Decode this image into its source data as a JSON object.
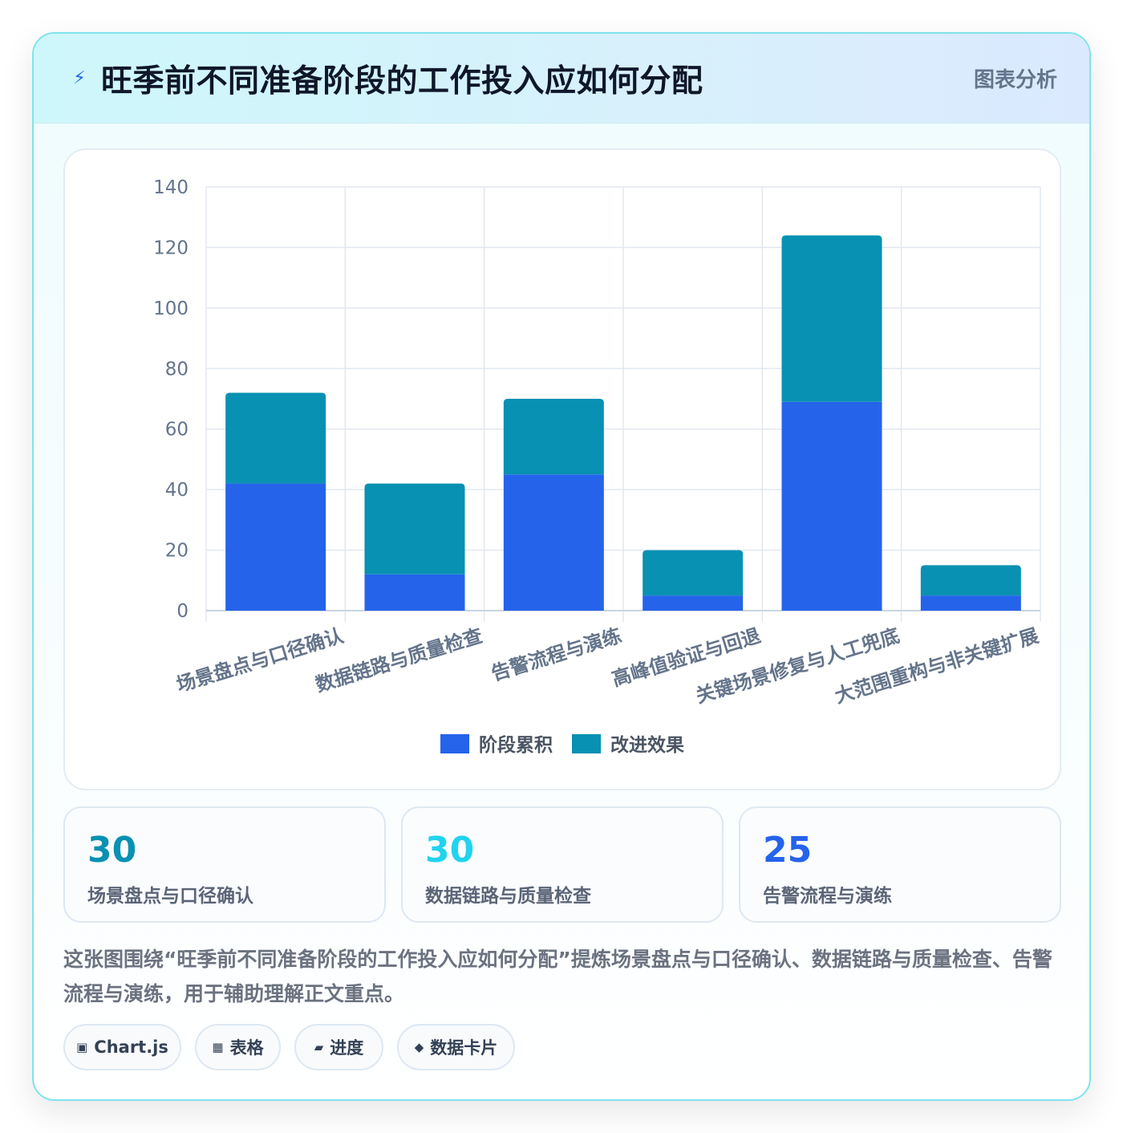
{
  "header": {
    "title": "旺季前不同准备阶段的工作投入应如何分配",
    "tag": "图表分析",
    "icon": "lightning-icon"
  },
  "chart_data": {
    "type": "bar",
    "stacked": true,
    "categories": [
      "场景盘点与口径确认",
      "数据链路与质量检查",
      "告警流程与演练",
      "高峰值验证与回退",
      "关键场景修复与人工兜底",
      "大范围重构与非关键扩展"
    ],
    "series": [
      {
        "name": "阶段累积",
        "values": [
          42,
          12,
          45,
          5,
          69,
          5
        ],
        "color": "#2563eb"
      },
      {
        "name": "改进效果",
        "values": [
          30,
          30,
          25,
          15,
          55,
          10
        ],
        "color": "#0891b2"
      }
    ],
    "ylim": [
      0,
      140
    ],
    "yticks": [
      0,
      20,
      40,
      60,
      80,
      100,
      120,
      140
    ],
    "grid": true,
    "legend_position": "bottom"
  },
  "stats": [
    {
      "value": "30",
      "label": "场景盘点与口径确认",
      "color": "#0891b2"
    },
    {
      "value": "30",
      "label": "数据链路与质量检查",
      "color": "#22d3ee"
    },
    {
      "value": "25",
      "label": "告警流程与演练",
      "color": "#2563eb"
    }
  ],
  "summary": "这张图围绕“旺季前不同准备阶段的工作投入应如何分配”提炼场景盘点与口径确认、数据链路与质量检查、告警流程与演练，用于辅助理解正文重点。",
  "chips": [
    {
      "icon": "▣",
      "icon_name": "chart-icon",
      "label": "Chart.js"
    },
    {
      "icon": "▦",
      "icon_name": "table-icon",
      "label": "表格"
    },
    {
      "icon": "▰",
      "icon_name": "progress-icon",
      "label": "进度"
    },
    {
      "icon": "◆",
      "icon_name": "diamond-icon",
      "label": "数据卡片"
    }
  ]
}
